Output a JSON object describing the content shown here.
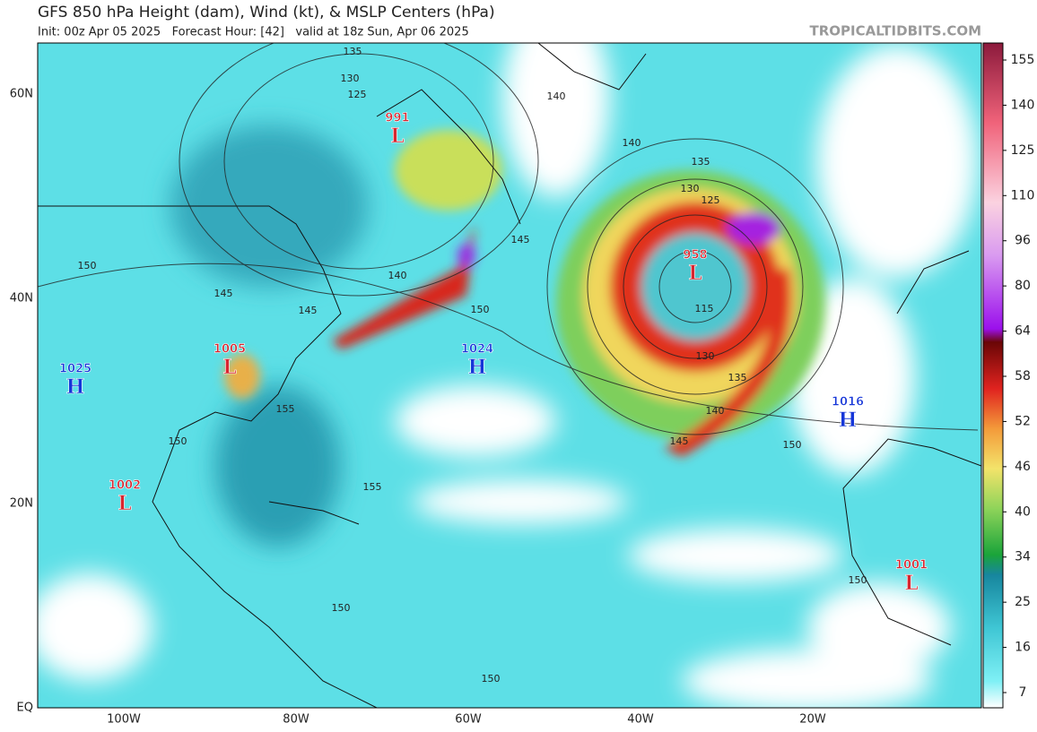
{
  "header": {
    "title": "GFS 850 hPa Height (dam), Wind (kt), & MSLP Centers (hPa)",
    "subtitle": "Init: 00z Apr 05 2025   Forecast Hour: [42]   valid at 18z Sun, Apr 06 2025",
    "site": "TROPICALTIDBITS.COM"
  },
  "latitudes": [
    "60N",
    "40N",
    "20N",
    "EQ"
  ],
  "longitudes": [
    "100W",
    "80W",
    "60W",
    "40W",
    "20W"
  ],
  "pressure_centers": [
    {
      "letter": "L",
      "value": "991"
    },
    {
      "letter": "L",
      "value": "958"
    },
    {
      "letter": "L",
      "value": "1005"
    },
    {
      "letter": "H",
      "value": "1024"
    },
    {
      "letter": "H",
      "value": "1025"
    },
    {
      "letter": "H",
      "value": "1016"
    },
    {
      "letter": "L",
      "value": "1002"
    },
    {
      "letter": "L",
      "value": "1001"
    }
  ],
  "contour_labels": [
    135,
    130,
    125,
    140,
    140,
    135,
    130,
    125,
    145,
    150,
    140,
    145,
    145,
    150,
    115,
    130,
    135,
    140,
    145,
    150,
    150,
    155,
    155,
    150,
    150,
    150
  ],
  "colorbar": {
    "ticks": [
      155,
      140,
      125,
      110,
      96,
      80,
      64,
      58,
      52,
      46,
      40,
      34,
      25,
      16,
      7
    ]
  }
}
